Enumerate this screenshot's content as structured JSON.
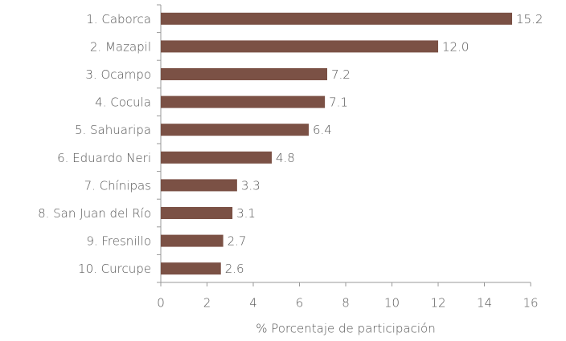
{
  "chart_data": {
    "type": "bar",
    "orientation": "horizontal",
    "categories": [
      "1. Caborca",
      "2. Mazapil",
      "3. Ocampo",
      "4. Cocula",
      "5. Sahuaripa",
      "6. Eduardo Neri",
      "7. Chínipas",
      "8. San Juan del Río",
      "9. Fresnillo",
      "10. Curcupe"
    ],
    "values": [
      15.2,
      12.0,
      7.2,
      7.1,
      6.4,
      4.8,
      3.3,
      3.1,
      2.7,
      2.6
    ],
    "value_labels": [
      "15.2",
      "12.0",
      "7.2",
      "7.1",
      "6.4",
      "4.8",
      "3.3",
      "3.1",
      "2.7",
      "2.6"
    ],
    "color": "#7b5145",
    "xlabel": "% Porcentaje de participación",
    "xlim": [
      0,
      16
    ],
    "xticks": [
      0,
      2,
      4,
      6,
      8,
      10,
      12,
      14,
      16
    ],
    "grid": false
  }
}
